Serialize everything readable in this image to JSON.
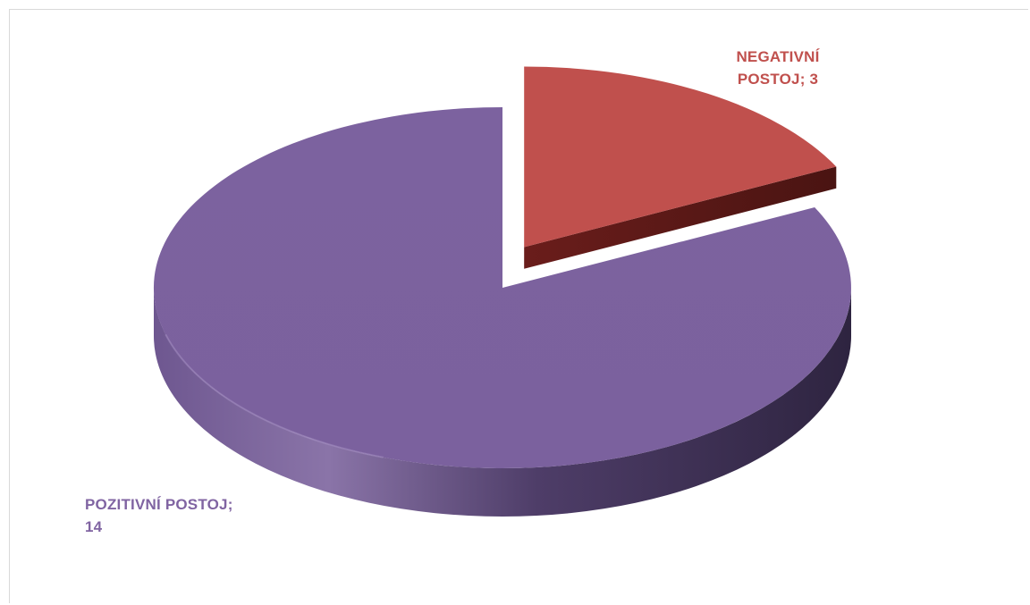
{
  "chart_data": {
    "type": "pie",
    "style": "3d-exploded",
    "slices": [
      {
        "label": "NEGATIVNÍ POSTOJ",
        "value": 3,
        "label_line1": "NEGATIVNÍ",
        "label_line2": "POSTOJ; 3",
        "color": "#c0504d"
      },
      {
        "label": "POZITIVNÍ POSTOJ",
        "value": 14,
        "label_line1": "POZITIVNÍ POSTOJ;",
        "label_line2": "14",
        "color": "#8064a2"
      }
    ],
    "legend": "none",
    "title": ""
  }
}
